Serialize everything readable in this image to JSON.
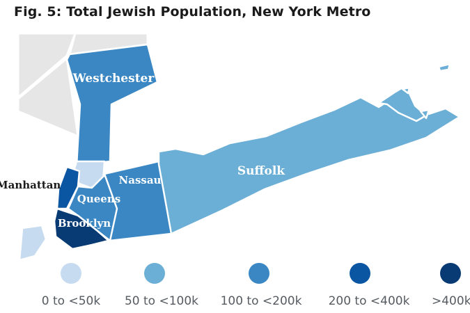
{
  "title": "Fig. 5: Total Jewish Population, New York Metro",
  "colors": {
    "bin0": "#c6dbef",
    "bin1": "#6baed6",
    "bin2": "#3a87c4",
    "bin3": "#0a56a2",
    "bin4": "#083a74",
    "nodata": "#e6e6e6",
    "border": "#ffffff"
  },
  "regions": [
    {
      "name": "Westchester",
      "bin": "100 to <200k"
    },
    {
      "name": "Suffolk",
      "bin": "50 to <100k"
    },
    {
      "name": "Nassau",
      "bin": "100 to <200k"
    },
    {
      "name": "Queens",
      "bin": "100 to <200k"
    },
    {
      "name": "Brooklyn",
      "bin": ">400k"
    },
    {
      "name": "Manhattan",
      "bin": "200 to <400k"
    }
  ],
  "legend": [
    {
      "label": "0 to <50k",
      "color": "#c6dbef"
    },
    {
      "label": "50 to <100k",
      "color": "#6baed6"
    },
    {
      "label": "100 to <200k",
      "color": "#3a87c4"
    },
    {
      "label": "200 to <400k",
      "color": "#0a56a2"
    },
    {
      "label": ">400k",
      "color": "#083a74"
    }
  ]
}
